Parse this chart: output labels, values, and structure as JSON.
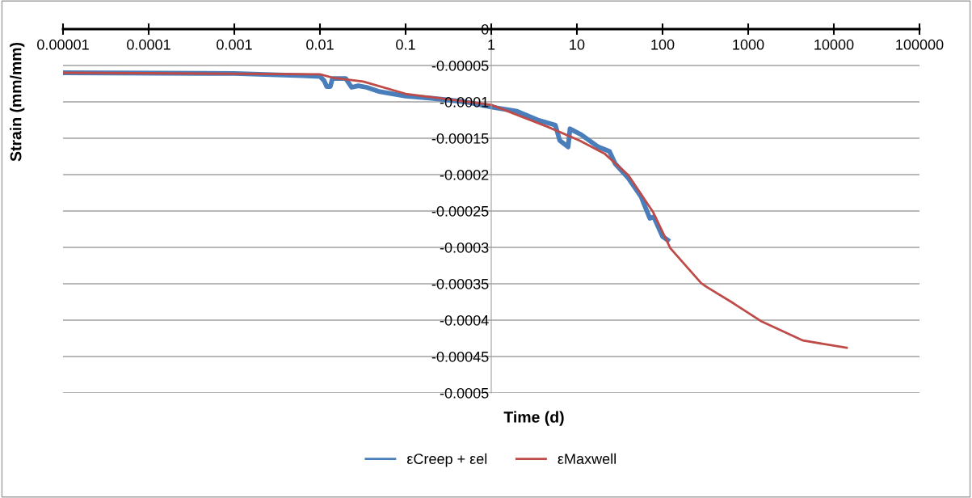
{
  "chart_data": {
    "type": "line",
    "xlabel": "Time (d)",
    "ylabel": "Strain (mm/mm)",
    "log": "x",
    "xlim": [
      1e-05,
      100000
    ],
    "ylim": [
      -0.0005,
      0
    ],
    "xticks": [
      {
        "value": 1e-05,
        "label": "0.00001"
      },
      {
        "value": 0.0001,
        "label": "0.0001"
      },
      {
        "value": 0.001,
        "label": "0.001"
      },
      {
        "value": 0.01,
        "label": "0.01"
      },
      {
        "value": 0.1,
        "label": "0.1"
      },
      1,
      10,
      100,
      1000,
      10000,
      100000
    ],
    "yticks": [
      0,
      {
        "value": -5e-05,
        "label": "-0.00005"
      },
      {
        "value": -0.0001,
        "label": "-0.0001"
      },
      {
        "value": -0.00015,
        "label": "-0.00015"
      },
      {
        "value": -0.0002,
        "label": "-0.0002"
      },
      {
        "value": -0.00025,
        "label": "-0.00025"
      },
      {
        "value": -0.0003,
        "label": "-0.0003"
      },
      {
        "value": -0.00035,
        "label": "-0.00035"
      },
      {
        "value": -0.0004,
        "label": "-0.0004"
      },
      {
        "value": -0.00045,
        "label": "-0.00045"
      },
      {
        "value": -0.0005,
        "label": "-0.0005"
      }
    ],
    "grid": "y",
    "legend": "bottom",
    "marker": "none",
    "line_style": "solid",
    "series": [
      {
        "name": "εCreep + εel",
        "color": "#4a7ebb",
        "x": [
          1e-05,
          0.001,
          0.0063,
          0.01,
          0.0112,
          0.012,
          0.0132,
          0.014,
          0.02,
          0.0234,
          0.028,
          0.035,
          0.05,
          0.1,
          0.2,
          0.5,
          1,
          2,
          3.5,
          5.6,
          6.3,
          7.9,
          8.3,
          11.2,
          17.8,
          24,
          28,
          40,
          56,
          71,
          79,
          100,
          115
        ],
        "values": [
          -6e-05,
          -6.1e-05,
          -6.4e-05,
          -6.5e-05,
          -7.1e-05,
          -7.9e-05,
          -7.9e-05,
          -6.8e-05,
          -6.8e-05,
          -8e-05,
          -7.8e-05,
          -8e-05,
          -8.6e-05,
          -9.2e-05,
          -9.5e-05,
          -0.0001,
          -0.000107,
          -0.000113,
          -0.000125,
          -0.000132,
          -0.000153,
          -0.000162,
          -0.000137,
          -0.000145,
          -0.000162,
          -0.000168,
          -0.000185,
          -0.000205,
          -0.00023,
          -0.00026,
          -0.000258,
          -0.000285,
          -0.00029
        ]
      },
      {
        "name": "εMaxwell",
        "color": "#be4b48",
        "x": [
          1e-05,
          0.01,
          0.014,
          0.032,
          0.1,
          1,
          4.5,
          10.7,
          21,
          40,
          78,
          123,
          282,
          324,
          676,
          1445,
          4365,
          14125
        ],
        "values": [
          -6e-05,
          -6.2e-05,
          -6.67e-05,
          -7.2e-05,
          -8.89e-05,
          -0.000104,
          -0.000134,
          -0.000153,
          -0.000171,
          -0.000201,
          -0.000252,
          -0.000301,
          -0.000349,
          -0.000354,
          -0.000377,
          -0.000402,
          -0.000428,
          -0.000438
        ]
      }
    ]
  }
}
